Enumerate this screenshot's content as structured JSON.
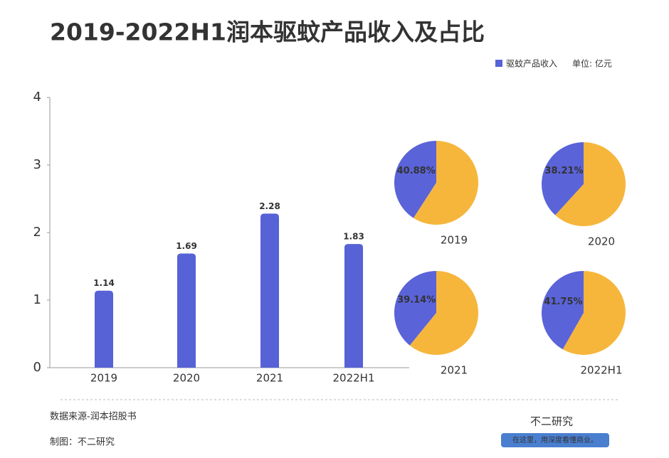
{
  "chart_data": [
    {
      "type": "bar",
      "title": "2019-2022H1润本驱蚊产品收入及占比",
      "series_name": "驱蚊产品收入",
      "unit": "单位: 亿元",
      "categories": [
        "2019",
        "2020",
        "2021",
        "2022H1"
      ],
      "values": [
        1.14,
        1.69,
        2.28,
        1.83
      ],
      "color": "#5662d6",
      "ylim": [
        0,
        4
      ],
      "yticks": [
        0,
        1,
        2,
        3,
        4
      ]
    },
    {
      "type": "pie",
      "title": "2019",
      "values": [
        40.88,
        59.12
      ],
      "value_labels": [
        "40.88%",
        null
      ],
      "colors": [
        "#5a63d8",
        "#f6b63c"
      ]
    },
    {
      "type": "pie",
      "title": "2020",
      "values": [
        38.21,
        61.79
      ],
      "value_labels": [
        "38.21%",
        null
      ],
      "colors": [
        "#5a63d8",
        "#f6b63c"
      ]
    },
    {
      "type": "pie",
      "title": "2021",
      "values": [
        39.14,
        60.86
      ],
      "value_labels": [
        "39.14%",
        null
      ],
      "colors": [
        "#5a63d8",
        "#f6b63c"
      ]
    },
    {
      "type": "pie",
      "title": "2022H1",
      "values": [
        41.75,
        58.25
      ],
      "value_labels": [
        "41.75%",
        null
      ],
      "colors": [
        "#5a63d8",
        "#f6b63c"
      ]
    }
  ],
  "footer": {
    "source": "数据来源-润本招股书",
    "credit": "制图：不二研究"
  },
  "brand": {
    "name": "不二研究",
    "slogan": "在这里，用深度看懂商业。"
  }
}
